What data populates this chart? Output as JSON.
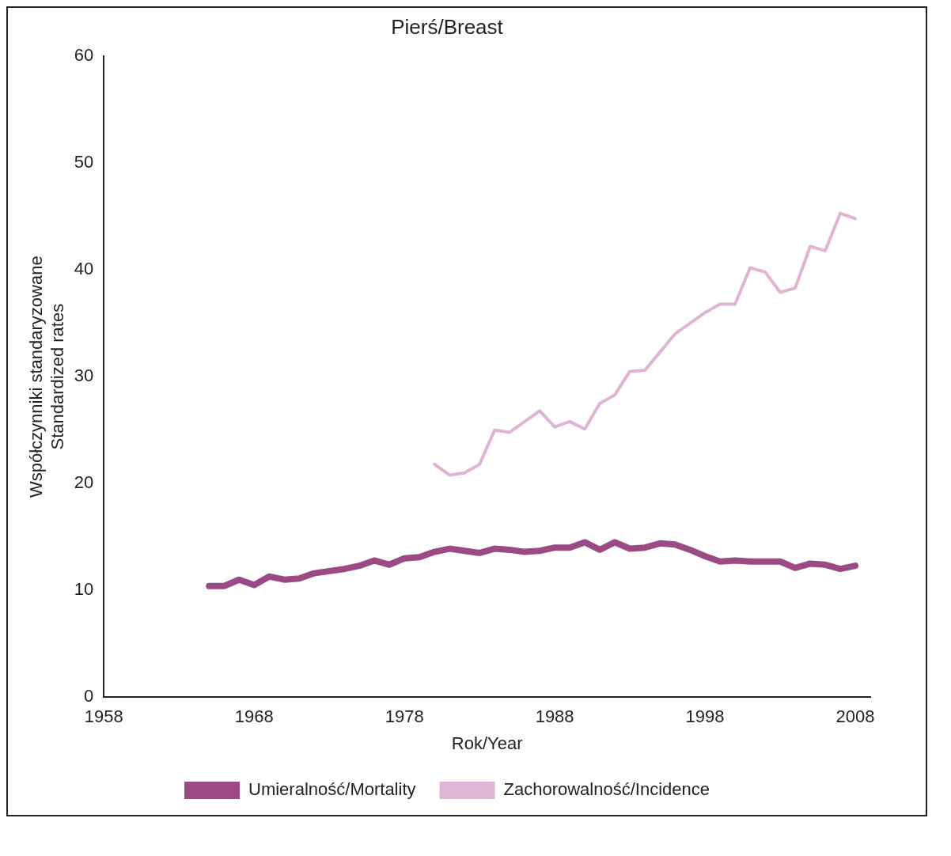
{
  "chart_data": {
    "type": "line",
    "title": "Pierś/Breast",
    "xlabel": "Rok/Year",
    "ylabel": "Współczynniki standaryzowane\nStandardized rates",
    "xlim": [
      1958,
      2009
    ],
    "xticks": [
      1958,
      1968,
      1978,
      1988,
      1998,
      2008
    ],
    "ylim": [
      0,
      60
    ],
    "yticks": [
      0,
      10,
      20,
      30,
      40,
      50,
      60
    ],
    "grid": false,
    "legend": "bottom",
    "marker": "none",
    "line_style": "solid",
    "series": [
      {
        "name": "Umieralność/Mortality",
        "color": "#9b4a86",
        "x": [
          1965,
          1966,
          1967,
          1968,
          1969,
          1970,
          1971,
          1972,
          1973,
          1974,
          1975,
          1976,
          1977,
          1978,
          1979,
          1980,
          1981,
          1982,
          1983,
          1984,
          1985,
          1986,
          1987,
          1988,
          1989,
          1990,
          1991,
          1992,
          1993,
          1994,
          1995,
          1996,
          1997,
          1998,
          1999,
          2000,
          2001,
          2002,
          2003,
          2004,
          2005,
          2006,
          2007,
          2008
        ],
        "values": [
          10.4,
          10.4,
          11.0,
          10.5,
          11.3,
          11.0,
          11.1,
          11.6,
          11.8,
          12.0,
          12.3,
          12.8,
          12.4,
          13.0,
          13.1,
          13.6,
          13.9,
          13.7,
          13.5,
          13.9,
          13.8,
          13.6,
          13.7,
          14.0,
          14.0,
          14.5,
          13.8,
          14.5,
          13.9,
          14.0,
          14.4,
          14.3,
          13.8,
          13.2,
          12.7,
          12.8,
          12.7,
          12.7,
          12.7,
          12.1,
          12.5,
          12.4,
          12.0,
          12.3
        ]
      },
      {
        "name": "Zachorowalność/Incidence",
        "color": "#e0b4d4",
        "x": [
          1980,
          1981,
          1982,
          1983,
          1984,
          1985,
          1986,
          1987,
          1988,
          1989,
          1990,
          1991,
          1992,
          1993,
          1994,
          1995,
          1996,
          1997,
          1998,
          1999,
          2000,
          2001,
          2002,
          2003,
          2004,
          2005,
          2006,
          2007,
          2008
        ],
        "values": [
          21.8,
          20.8,
          21.0,
          21.8,
          25.0,
          24.8,
          25.8,
          26.8,
          25.3,
          25.8,
          25.1,
          27.5,
          28.3,
          30.5,
          30.6,
          32.3,
          34.0,
          35.0,
          36.0,
          36.8,
          36.8,
          40.2,
          39.8,
          37.9,
          38.3,
          42.2,
          41.8,
          45.3,
          44.8
        ]
      }
    ]
  }
}
